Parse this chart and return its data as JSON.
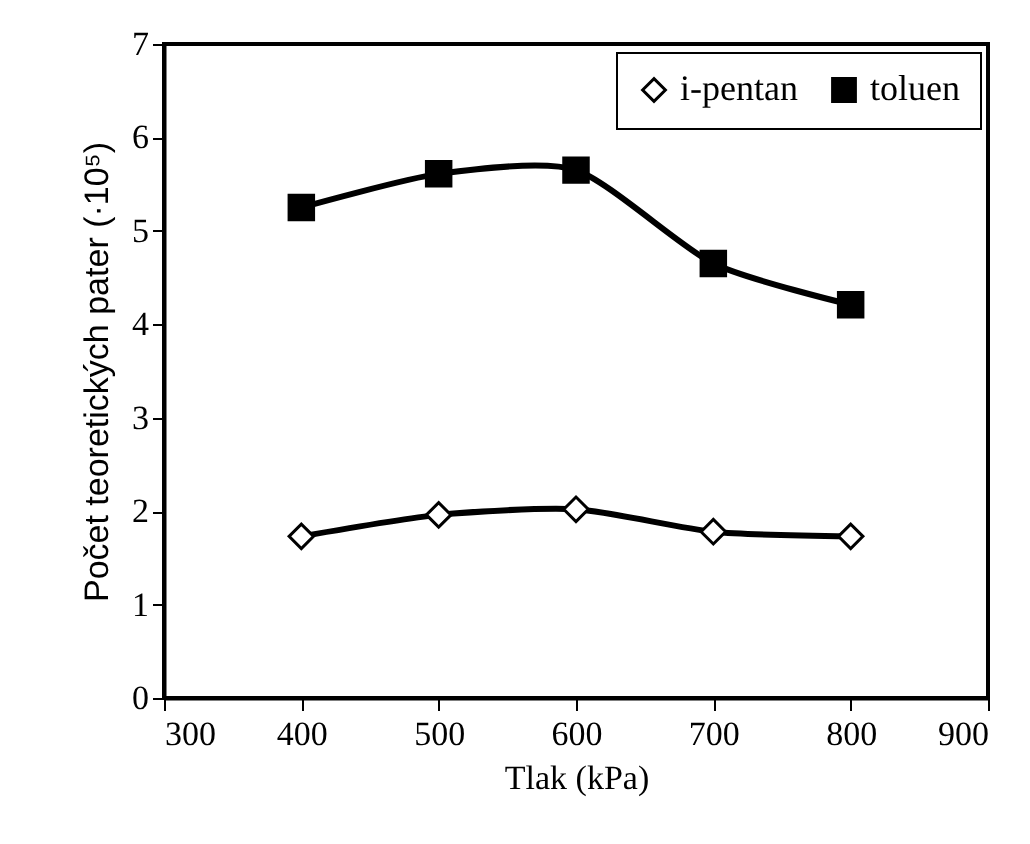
{
  "chart_data": {
    "type": "line",
    "xlabel": "Tlak (kPa)",
    "ylabel": "Počet teoretických pater (·10⁵)",
    "x": [
      400,
      500,
      600,
      700,
      800
    ],
    "series": [
      {
        "name": "i-pentan",
        "color": "#000000",
        "marker": "diamond",
        "values": [
          1.73,
          1.96,
          2.02,
          1.78,
          1.73
        ]
      },
      {
        "name": "toluen",
        "color": "#000000",
        "marker": "square",
        "values": [
          5.25,
          5.61,
          5.65,
          4.65,
          4.21
        ]
      }
    ],
    "xlim": [
      300,
      900
    ],
    "xticks": [
      300,
      400,
      500,
      600,
      700,
      800,
      900
    ],
    "ylim": [
      0,
      7
    ],
    "yticks": [
      0,
      1,
      2,
      3,
      4,
      5,
      6,
      7
    ],
    "legend": "top right",
    "grid": false,
    "line_style": "solid"
  }
}
